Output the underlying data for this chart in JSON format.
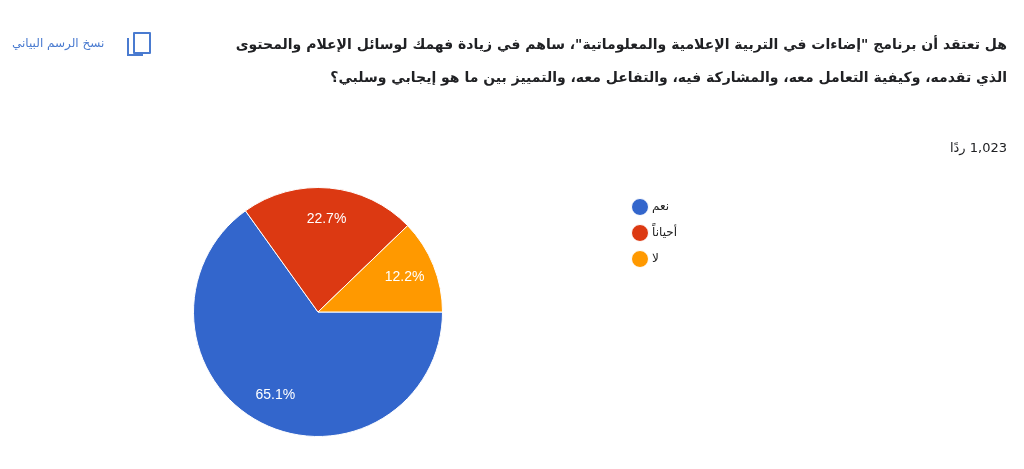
{
  "chart_data": {
    "type": "pie",
    "title": "هل تعتقد أن برنامج \"إضاءات في التربية الإعلامية والمعلوماتية\"، ساهم في زيادة فهمك لوسائل الإعلام والمحتوى الذي تقدمه، وكيفية التعامل معه، والمشاركة فيه، والتفاعل معه، والتمييز بين ما هو إيجابي وسلبي؟",
    "subtitle": "1,023 ردًا",
    "annotations": [
      "نسخ الرسم البياني"
    ],
    "categories": [
      "نعم",
      "أحياناً",
      "لا"
    ],
    "values": [
      65.1,
      22.7,
      12.2
    ],
    "colors": [
      "#3366cc",
      "#dc3912",
      "#ff9900"
    ],
    "value_labels": [
      "65.1%",
      "22.7%",
      "12.2%"
    ],
    "legend": "top right"
  }
}
